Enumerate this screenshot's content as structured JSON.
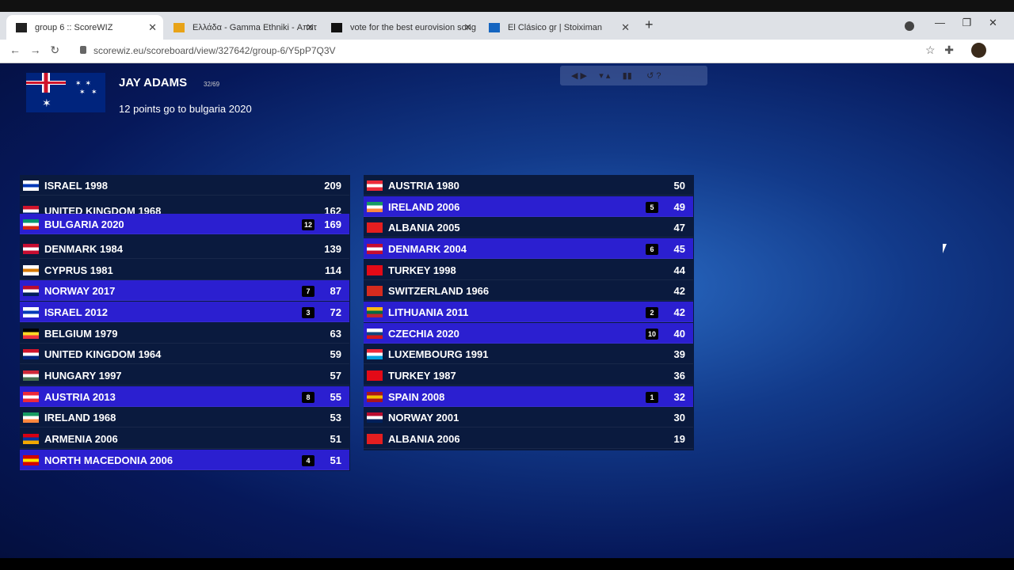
{
  "browser": {
    "tabs": [
      "group 6 :: ScoreWIZ",
      "Ελλάδα - Gamma Ethniki - Αποτ",
      "vote for the best eurovision song",
      "El Clásico gr | Stoiximan"
    ],
    "url": "scorewiz.eu/scoreboard/view/327642/group-6/Y5pP7Q3V"
  },
  "voter": {
    "name": "JAY ADAMS",
    "progress": "32/69",
    "message": "12 points go to bulgaria 2020"
  },
  "scoreboard": {
    "left": [
      {
        "name": "ISRAEL 1998",
        "score": 209
      },
      {
        "name": "UNITED KINGDOM 1968",
        "score": 162
      },
      {
        "name": "BULGARIA 2020",
        "points": 12,
        "score": 169
      },
      {
        "name": "DENMARK 1984",
        "score": 139
      },
      {
        "name": "CYPRUS 1981",
        "score": 114
      },
      {
        "name": "NORWAY 2017",
        "points": 7,
        "score": 87
      },
      {
        "name": "ISRAEL 2012",
        "points": 3,
        "score": 72
      },
      {
        "name": "BELGIUM 1979",
        "score": 63
      },
      {
        "name": "UNITED KINGDOM 1964",
        "score": 59
      },
      {
        "name": "HUNGARY 1997",
        "score": 57
      },
      {
        "name": "AUSTRIA 2013",
        "points": 8,
        "score": 55
      },
      {
        "name": "IRELAND 1968",
        "score": 53
      },
      {
        "name": "ARMENIA 2006",
        "score": 51
      },
      {
        "name": "NORTH MACEDONIA 2006",
        "points": 4,
        "score": 51
      }
    ],
    "right": [
      {
        "name": "AUSTRIA 1980",
        "score": 50
      },
      {
        "name": "IRELAND 2006",
        "points": 5,
        "score": 49
      },
      {
        "name": "ALBANIA 2005",
        "score": 47
      },
      {
        "name": "DENMARK 2004",
        "points": 6,
        "score": 45
      },
      {
        "name": "TURKEY 1998",
        "score": 44
      },
      {
        "name": "SWITZERLAND 1966",
        "score": 42
      },
      {
        "name": "LITHUANIA 2011",
        "points": 2,
        "score": 42
      },
      {
        "name": "CZECHIA 2020",
        "points": 10,
        "score": 40
      },
      {
        "name": "LUXEMBOURG 1991",
        "score": 39
      },
      {
        "name": "TURKEY 1987",
        "score": 36
      },
      {
        "name": "SPAIN 2008",
        "points": 1,
        "score": 32
      },
      {
        "name": "NORWAY 2001",
        "score": 30
      },
      {
        "name": "ALBANIA 2006",
        "score": 19
      }
    ]
  }
}
